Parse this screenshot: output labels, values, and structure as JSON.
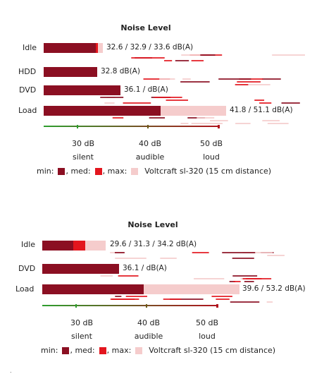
{
  "colors": {
    "min": "#8b0f22",
    "med": "#e3161e",
    "max": "#f5cccc",
    "axis_green": "#2e9e2e",
    "axis_red": "#b0141e"
  },
  "chart_data": [
    {
      "type": "bar",
      "title": "Noise Level",
      "categories": [
        "Idle",
        "HDD",
        "DVD",
        "Load"
      ],
      "series": [
        {
          "name": "min",
          "values": [
            32.6,
            32.8,
            36.1,
            41.8
          ]
        },
        {
          "name": "med",
          "values": [
            32.9,
            null,
            null,
            null
          ]
        },
        {
          "name": "max",
          "values": [
            33.6,
            null,
            null,
            51.1
          ]
        }
      ],
      "value_labels": [
        "32.6 / 32.9 / 33.6 dB(A)",
        "32.8 dB(A)",
        "36.1 / dB(A)",
        "41.8 / 51.1 dB(A)"
      ],
      "xlim": [
        20,
        55
      ],
      "ticks": [
        {
          "value": 30,
          "label": "30 dB",
          "sub": "silent"
        },
        {
          "value": 40,
          "label": "40 dB",
          "sub": "audible"
        },
        {
          "value": 50,
          "label": "50 dB",
          "sub": "loud"
        }
      ],
      "legend": {
        "min": "min:",
        "med": ", med:",
        "max": ", max:",
        "device": "Voltcraft sl-320 (15 cm distance)"
      }
    },
    {
      "type": "bar",
      "title": "Noise Level",
      "categories": [
        "Idle",
        "DVD",
        "Load"
      ],
      "series": [
        {
          "name": "min",
          "values": [
            29.6,
            36.1,
            39.6
          ]
        },
        {
          "name": "med",
          "values": [
            31.3,
            null,
            null
          ]
        },
        {
          "name": "max",
          "values": [
            34.2,
            null,
            53.2
          ]
        }
      ],
      "value_labels": [
        "29.6 / 31.3 / 34.2 dB(A)",
        "36.1 / dB(A)",
        "39.6 / 53.2 dB(A)"
      ],
      "xlim": [
        20,
        55
      ],
      "ticks": [
        {
          "value": 30,
          "label": "30 dB",
          "sub": "silent"
        },
        {
          "value": 40,
          "label": "40 dB",
          "sub": "audible"
        },
        {
          "value": 50,
          "label": "50 dB",
          "sub": "loud"
        }
      ],
      "legend": {
        "min": "min:",
        "med": ", med:",
        "max": ", max:",
        "device": "Voltcraft sl-320 (15 cm distance)"
      }
    }
  ]
}
